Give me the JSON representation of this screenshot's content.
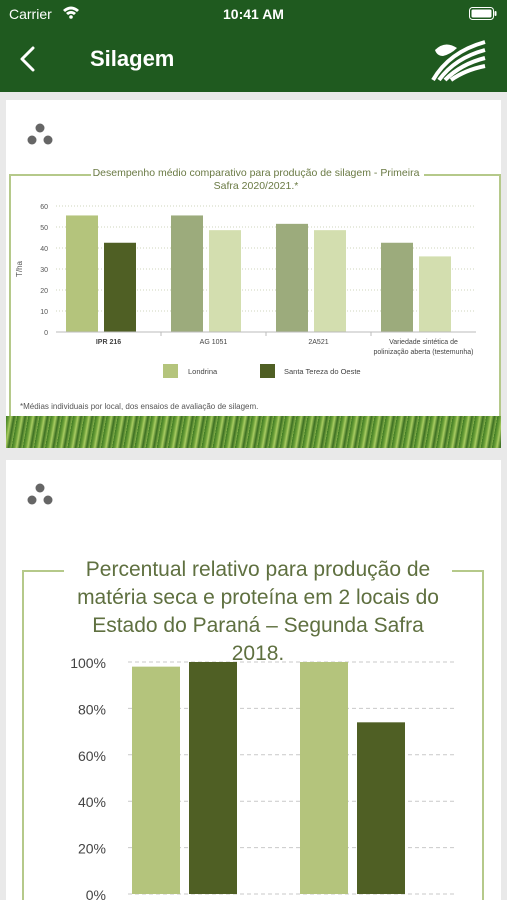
{
  "status_bar": {
    "carrier": "Carrier",
    "time": "10:41 AM"
  },
  "nav": {
    "title": "Silagem",
    "back_icon": "chevron-left-icon",
    "logo_icon": "brand-logo-icon"
  },
  "colors": {
    "nav_bg": "#1f5a1f",
    "light_green": "#b4c47c",
    "dark_green": "#4f5f24",
    "mid_green": "#9cab7c",
    "pale_green": "#d3deaf",
    "frame": "#b5c98a"
  },
  "card1": {
    "share_icon": "share-icon",
    "title": "Desempenho médio comparativo para produção de silagem - Primeira Safra 2020/2021.*",
    "note": "*Médias individuais por local, dos ensaios de avaliação de silagem."
  },
  "card2": {
    "share_icon": "share-icon",
    "title": "Percentual relativo para produção de matéria seca e proteína em 2 locais do Estado do Paraná – Segunda Safra 2018."
  },
  "chart_data": [
    {
      "type": "bar",
      "title": "Desempenho médio comparativo para produção de silagem - Primeira Safra 2020/2021.*",
      "ylabel": "T/ha",
      "ylim": [
        0,
        60
      ],
      "yticks": [
        0,
        5,
        10,
        15,
        20,
        25,
        30,
        35,
        40,
        45,
        50,
        55,
        60
      ],
      "categories": [
        "IPR 216",
        "AG 1051",
        "2A521",
        "Variedade sintética de polinização aberta (testemunha)"
      ],
      "category_lines": [
        [
          "IPR 216"
        ],
        [
          "AG 1051"
        ],
        [
          "2A521"
        ],
        [
          "Variedade sintética de",
          "polinização aberta (testemunha)"
        ]
      ],
      "series": [
        {
          "name": "Londrina",
          "values": [
            55.5,
            55.5,
            51.5,
            42.5
          ]
        },
        {
          "name": "Santa Tereza do Oeste",
          "values": [
            42.5,
            48.5,
            48.5,
            36
          ]
        }
      ],
      "legend": "bottom"
    },
    {
      "type": "bar",
      "title": "Percentual relativo para produção de matéria seca e proteína em 2 locais do Estado do Paraná – Segunda Safra 2018.",
      "ylim": [
        0,
        100
      ],
      "yticks": [
        "0%",
        "20%",
        "40%",
        "60%",
        "80%",
        "100%"
      ],
      "series": [
        {
          "values": [
            98,
            100
          ]
        },
        {
          "values": [
            100,
            74
          ]
        }
      ]
    }
  ]
}
